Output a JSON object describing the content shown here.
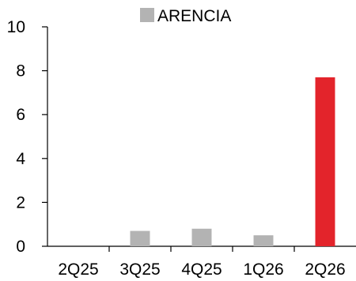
{
  "chart_data": {
    "type": "bar",
    "title": "",
    "xlabel": "",
    "ylabel": "",
    "categories": [
      "2Q25",
      "3Q25",
      "4Q25",
      "1Q26",
      "2Q26"
    ],
    "series": [
      {
        "name": "ARENCIA",
        "values": [
          0,
          0.7,
          0.8,
          0.5,
          7.7
        ],
        "color": "#b3b3b3"
      }
    ],
    "highlight": {
      "category": "2Q26",
      "color": "#e3242b"
    },
    "ylim": [
      0,
      10
    ],
    "yticks": [
      "0",
      "2",
      "4",
      "6",
      "8",
      "10"
    ],
    "grid": false,
    "legend": "top-center",
    "axis_color": "#000000"
  }
}
